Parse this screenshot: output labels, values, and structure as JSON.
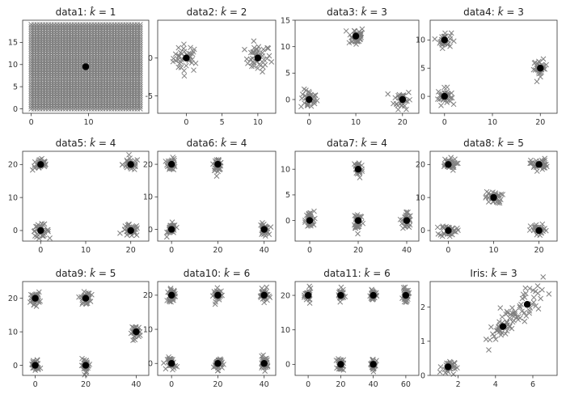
{
  "figure": {
    "background": "#ffffff"
  },
  "style": {
    "point_color": "#7f7f7f",
    "center_color": "#000000",
    "frame_color": "#333333"
  },
  "chart_data": [
    {
      "type": "scatter",
      "title": "data1: k̂ = 1",
      "title_prefix": "data1: ",
      "k_hat": 1,
      "xlim": [
        -1.5,
        20.5
      ],
      "ylim": [
        -1,
        20
      ],
      "xticks": [
        0,
        10
      ],
      "yticks": [
        0,
        5,
        10,
        15
      ],
      "clusters": [
        {
          "cx": 9.5,
          "cy": 9.5,
          "spread": 0,
          "n": 0
        }
      ],
      "grid_fill": {
        "x": [
          0,
          19
        ],
        "y": [
          0,
          19
        ],
        "step": 0.5
      },
      "centers": [
        [
          9.5,
          9.5
        ]
      ]
    },
    {
      "type": "scatter",
      "title": "data2: k̂ = 2",
      "title_prefix": "data2: ",
      "k_hat": 2,
      "xlim": [
        -4,
        12.5
      ],
      "ylim": [
        -7.3,
        5
      ],
      "xticks": [
        0,
        5,
        10
      ],
      "yticks": [
        -5,
        0
      ],
      "clusters": [
        {
          "cx": 0,
          "cy": 0,
          "spread": 0.9,
          "n": 40
        },
        {
          "cx": 10,
          "cy": 0,
          "spread": 0.9,
          "n": 40
        }
      ],
      "centers": [
        [
          0,
          0
        ],
        [
          10,
          0
        ]
      ]
    },
    {
      "type": "scatter",
      "title": "data3: k̂ = 3",
      "title_prefix": "data3: ",
      "k_hat": 3,
      "xlim": [
        -3,
        23.5
      ],
      "ylim": [
        -2.6,
        15
      ],
      "xticks": [
        0,
        10,
        20
      ],
      "yticks": [
        0,
        5,
        10,
        15
      ],
      "clusters": [
        {
          "cx": 0,
          "cy": 0,
          "spread": 0.9,
          "n": 35
        },
        {
          "cx": 10,
          "cy": 12,
          "spread": 0.9,
          "n": 35
        },
        {
          "cx": 20,
          "cy": 0,
          "spread": 0.9,
          "n": 35
        }
      ],
      "centers": [
        [
          0,
          0
        ],
        [
          10,
          12
        ],
        [
          20,
          0
        ]
      ]
    },
    {
      "type": "scatter",
      "title": "data4: k̂ = 3",
      "title_prefix": "data4: ",
      "k_hat": 3,
      "xlim": [
        -3,
        23.5
      ],
      "ylim": [
        -3,
        13.5
      ],
      "xticks": [
        0,
        10,
        20
      ],
      "yticks": [
        0,
        5,
        10
      ],
      "clusters": [
        {
          "cx": 0,
          "cy": 0,
          "spread": 0.7,
          "n": 35
        },
        {
          "cx": 0,
          "cy": 10,
          "spread": 0.7,
          "n": 30
        },
        {
          "cx": 20,
          "cy": 5,
          "spread": 0.7,
          "n": 35
        }
      ],
      "centers": [
        [
          0,
          0
        ],
        [
          0,
          10
        ],
        [
          20,
          5
        ]
      ]
    },
    {
      "type": "scatter",
      "title": "data5: k̂ = 4",
      "title_prefix": "data5: ",
      "k_hat": 4,
      "xlim": [
        -4,
        24
      ],
      "ylim": [
        -3.2,
        24
      ],
      "xticks": [
        0,
        10,
        20
      ],
      "yticks": [
        0,
        10,
        20
      ],
      "clusters": [
        {
          "cx": 0,
          "cy": 0,
          "spread": 0.9,
          "n": 35
        },
        {
          "cx": 0,
          "cy": 20,
          "spread": 0.9,
          "n": 35
        },
        {
          "cx": 20,
          "cy": 20,
          "spread": 0.9,
          "n": 35
        },
        {
          "cx": 20,
          "cy": 0,
          "spread": 0.9,
          "n": 35
        }
      ],
      "centers": [
        [
          0,
          0
        ],
        [
          0,
          20
        ],
        [
          20,
          20
        ],
        [
          20,
          0
        ]
      ]
    },
    {
      "type": "scatter",
      "title": "data6: k̂ = 4",
      "title_prefix": "data6: ",
      "k_hat": 4,
      "xlim": [
        -6,
        45
      ],
      "ylim": [
        -3.6,
        24
      ],
      "xticks": [
        0,
        20,
        40
      ],
      "yticks": [
        0,
        10,
        20
      ],
      "clusters": [
        {
          "cx": 0,
          "cy": 0,
          "spread": 0.9,
          "n": 35
        },
        {
          "cx": 0,
          "cy": 20,
          "spread": 0.9,
          "n": 35
        },
        {
          "cx": 20,
          "cy": 20,
          "spread": 0.9,
          "n": 35
        },
        {
          "cx": 40,
          "cy": 0,
          "spread": 0.9,
          "n": 35
        }
      ],
      "centers": [
        [
          0,
          0
        ],
        [
          0,
          20
        ],
        [
          20,
          20
        ],
        [
          40,
          0
        ]
      ]
    },
    {
      "type": "scatter",
      "title": "data7: k̂ = 4",
      "title_prefix": "data7: ",
      "k_hat": 4,
      "xlim": [
        -6,
        45
      ],
      "ylim": [
        -4,
        13.5
      ],
      "xticks": [
        0,
        20,
        40
      ],
      "yticks": [
        0,
        5,
        10
      ],
      "clusters": [
        {
          "cx": 0,
          "cy": 0,
          "spread": 0.9,
          "n": 35
        },
        {
          "cx": 20,
          "cy": 10,
          "spread": 0.9,
          "n": 35
        },
        {
          "cx": 20,
          "cy": 0,
          "spread": 0.9,
          "n": 35
        },
        {
          "cx": 40,
          "cy": 0,
          "spread": 0.9,
          "n": 35
        }
      ],
      "centers": [
        [
          0,
          0
        ],
        [
          20,
          10
        ],
        [
          20,
          0
        ],
        [
          40,
          0
        ]
      ]
    },
    {
      "type": "scatter",
      "title": "data8: k̂ = 5",
      "title_prefix": "data8: ",
      "k_hat": 5,
      "xlim": [
        -4,
        24
      ],
      "ylim": [
        -3.2,
        24
      ],
      "xticks": [
        0,
        10,
        20
      ],
      "yticks": [
        0,
        10,
        20
      ],
      "clusters": [
        {
          "cx": 0,
          "cy": 0,
          "spread": 0.9,
          "n": 35
        },
        {
          "cx": 0,
          "cy": 20,
          "spread": 0.9,
          "n": 35
        },
        {
          "cx": 10,
          "cy": 10,
          "spread": 0.9,
          "n": 35
        },
        {
          "cx": 20,
          "cy": 20,
          "spread": 0.9,
          "n": 35
        },
        {
          "cx": 20,
          "cy": 0,
          "spread": 0.9,
          "n": 35
        }
      ],
      "centers": [
        [
          0,
          0
        ],
        [
          0,
          20
        ],
        [
          10,
          10
        ],
        [
          20,
          20
        ],
        [
          20,
          0
        ]
      ]
    },
    {
      "type": "scatter",
      "title": "data9: k̂ = 5",
      "title_prefix": "data9: ",
      "k_hat": 5,
      "xlim": [
        -5,
        45
      ],
      "ylim": [
        -3,
        25
      ],
      "xticks": [
        0,
        20,
        40
      ],
      "yticks": [
        0,
        10,
        20
      ],
      "clusters": [
        {
          "cx": 0,
          "cy": 0,
          "spread": 0.9,
          "n": 35
        },
        {
          "cx": 0,
          "cy": 20,
          "spread": 0.9,
          "n": 35
        },
        {
          "cx": 20,
          "cy": 20,
          "spread": 0.9,
          "n": 35
        },
        {
          "cx": 20,
          "cy": 0,
          "spread": 0.9,
          "n": 35
        },
        {
          "cx": 40,
          "cy": 10,
          "spread": 0.9,
          "n": 35
        }
      ],
      "centers": [
        [
          0,
          0
        ],
        [
          0,
          20
        ],
        [
          20,
          20
        ],
        [
          20,
          0
        ],
        [
          40,
          10
        ]
      ]
    },
    {
      "type": "scatter",
      "title": "data10: k̂ = 6",
      "title_prefix": "data10: ",
      "k_hat": 6,
      "xlim": [
        -6,
        45
      ],
      "ylim": [
        -3.5,
        24
      ],
      "xticks": [
        0,
        20,
        40
      ],
      "yticks": [
        0,
        10,
        20
      ],
      "clusters": [
        {
          "cx": 0,
          "cy": 0,
          "spread": 0.9,
          "n": 35
        },
        {
          "cx": 0,
          "cy": 20,
          "spread": 0.9,
          "n": 35
        },
        {
          "cx": 20,
          "cy": 20,
          "spread": 0.9,
          "n": 35
        },
        {
          "cx": 20,
          "cy": 0,
          "spread": 0.9,
          "n": 35
        },
        {
          "cx": 40,
          "cy": 20,
          "spread": 0.9,
          "n": 35
        },
        {
          "cx": 40,
          "cy": 0,
          "spread": 0.9,
          "n": 35
        }
      ],
      "centers": [
        [
          0,
          0
        ],
        [
          0,
          20
        ],
        [
          20,
          20
        ],
        [
          20,
          0
        ],
        [
          40,
          20
        ],
        [
          40,
          0
        ]
      ]
    },
    {
      "type": "scatter",
      "title": "data11: k̂ = 6",
      "title_prefix": "data11: ",
      "k_hat": 6,
      "xlim": [
        -8,
        68
      ],
      "ylim": [
        -3.2,
        24
      ],
      "xticks": [
        0,
        20,
        40,
        60
      ],
      "yticks": [
        0,
        10,
        20
      ],
      "clusters": [
        {
          "cx": 0,
          "cy": 20,
          "spread": 0.9,
          "n": 35
        },
        {
          "cx": 20,
          "cy": 20,
          "spread": 0.9,
          "n": 35
        },
        {
          "cx": 40,
          "cy": 20,
          "spread": 0.9,
          "n": 35
        },
        {
          "cx": 60,
          "cy": 20,
          "spread": 0.9,
          "n": 35
        },
        {
          "cx": 20,
          "cy": 0,
          "spread": 0.9,
          "n": 35
        },
        {
          "cx": 40,
          "cy": 0,
          "spread": 0.9,
          "n": 35
        }
      ],
      "centers": [
        [
          0,
          20
        ],
        [
          20,
          20
        ],
        [
          40,
          20
        ],
        [
          60,
          20
        ],
        [
          20,
          0
        ],
        [
          40,
          0
        ]
      ]
    },
    {
      "type": "scatter",
      "title": "Iris: k̂ = 3",
      "title_prefix": "Iris: ",
      "k_hat": 3,
      "xlim": [
        0.5,
        7.3
      ],
      "ylim": [
        0,
        2.75
      ],
      "xticks": [
        2,
        4,
        6
      ],
      "yticks": [
        0,
        1,
        2
      ],
      "clusters": [
        {
          "cx": 1.46,
          "cy": 0.25,
          "spread": 0.15,
          "n": 30,
          "sx": 0.17,
          "sy": 0.1
        },
        {
          "cx": 4.3,
          "cy": 1.35,
          "spread": 0.3,
          "n": 40,
          "sx": 0.45,
          "sy": 0.2,
          "corr": 0.35
        },
        {
          "cx": 5.55,
          "cy": 2.03,
          "spread": 0.3,
          "n": 40,
          "sx": 0.5,
          "sy": 0.25,
          "corr": 0.35
        }
      ],
      "centers": [
        [
          1.46,
          0.25
        ],
        [
          4.4,
          1.43
        ],
        [
          5.7,
          2.08
        ]
      ]
    }
  ]
}
